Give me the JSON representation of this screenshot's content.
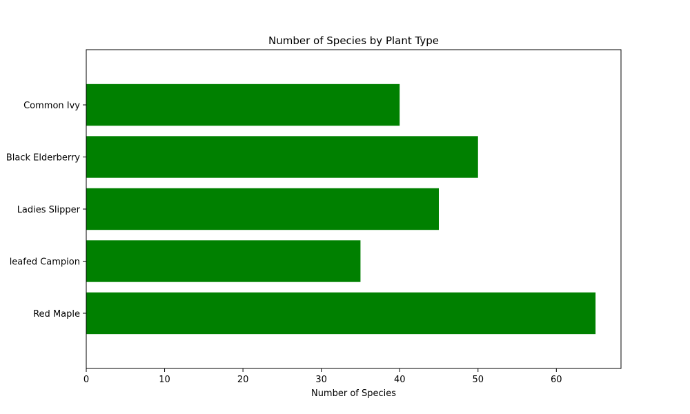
{
  "chart_data": {
    "type": "bar",
    "orientation": "horizontal",
    "title": "Number of Species by Plant Type",
    "xlabel": "Number of Species",
    "ylabel": "",
    "categories": [
      "Red Maple",
      "leafed Campion",
      "Ladies Slipper",
      "Black Elderberry",
      "Common Ivy"
    ],
    "values": [
      65,
      35,
      45,
      50,
      40
    ],
    "xlim": [
      0,
      68.25
    ],
    "xticks": [
      0,
      10,
      20,
      30,
      40,
      50,
      60
    ],
    "grid": false,
    "legend": "none",
    "bar_color": "#008000"
  }
}
